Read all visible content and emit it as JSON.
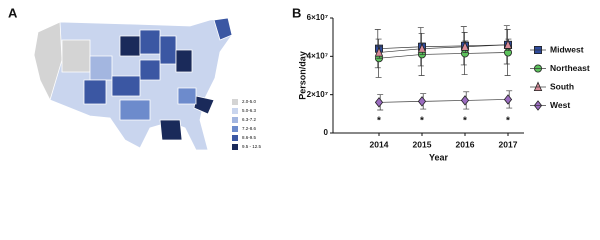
{
  "panels": {
    "a": "A",
    "b": "B"
  },
  "map": {
    "legend": [
      {
        "label": "2.0-5.0",
        "color": "#d4d4d4"
      },
      {
        "label": "5.0-6.3",
        "color": "#c9d5ee"
      },
      {
        "label": "6.3-7.2",
        "color": "#a3b6e0"
      },
      {
        "label": "7.2-8.6",
        "color": "#6d8bcc"
      },
      {
        "label": "8.6-9.5",
        "color": "#3b57a3"
      },
      {
        "label": "9.5 - 12.5",
        "color": "#1a2a5a"
      }
    ]
  },
  "chart_data": {
    "type": "line",
    "y_label": "Person/day",
    "x_label": "Year",
    "categories": [
      "2014",
      "2015",
      "2016",
      "2017"
    ],
    "ylim": [
      0,
      60000000
    ],
    "yticks": [
      0,
      {
        "value": 20000000,
        "label": "2×10⁷"
      },
      {
        "value": 40000000,
        "label": "4×10⁷"
      },
      {
        "value": 60000000,
        "label": "6×10⁷"
      }
    ],
    "series": [
      {
        "name": "Midwest",
        "color": "#2f4b9c",
        "marker": "square",
        "values": [
          44000000,
          45000000,
          45500000,
          46000000
        ],
        "errors": [
          10000000,
          10000000,
          10000000,
          10000000
        ]
      },
      {
        "name": "Northeast",
        "color": "#5cc25c",
        "marker": "circle",
        "values": [
          39000000,
          41000000,
          41500000,
          42000000
        ],
        "errors": [
          10000000,
          11000000,
          11000000,
          12000000
        ]
      },
      {
        "name": "South",
        "color": "#d98a98",
        "marker": "triangle",
        "values": [
          42000000,
          44000000,
          45000000,
          46000000
        ],
        "errors": [
          3000000,
          3000000,
          3000000,
          3000000
        ]
      },
      {
        "name": "West",
        "color": "#9b6cc0",
        "marker": "diamond",
        "values": [
          16000000,
          16500000,
          17000000,
          17500000
        ],
        "errors": [
          4000000,
          4000000,
          4500000,
          4500000
        ]
      }
    ],
    "annotations": [
      "*",
      "*",
      "*",
      "*"
    ]
  }
}
